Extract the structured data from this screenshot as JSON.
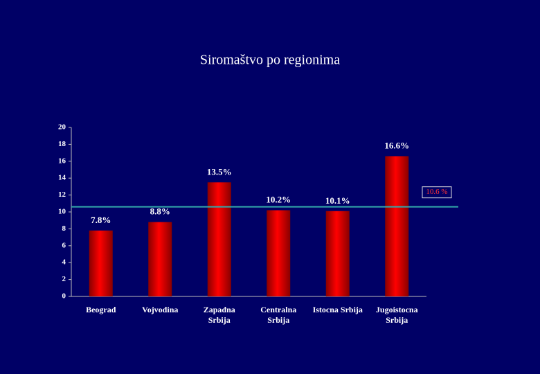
{
  "chart_data": {
    "type": "bar",
    "title": "Siromaštvo po regionima",
    "categories": [
      "Beograd",
      "Vojvodina",
      "Zapadna\nSrbija",
      "Centralna\nSrbija",
      "Istocna Srbija",
      "Jugoistocna\nSrbija"
    ],
    "values": [
      7.8,
      8.8,
      13.5,
      10.2,
      10.1,
      16.6
    ],
    "value_labels": [
      "7.8%",
      "8.8%",
      "13.5%",
      "10.2%",
      "10.1%",
      "16.6%"
    ],
    "color": "#ff0000",
    "ylim": [
      0,
      20
    ],
    "yticks": [
      0,
      2,
      4,
      6,
      8,
      10,
      12,
      14,
      16,
      18,
      20
    ],
    "reference_line": {
      "value": 10.6,
      "label": "10.6 %",
      "color": "#33aaaa"
    }
  }
}
